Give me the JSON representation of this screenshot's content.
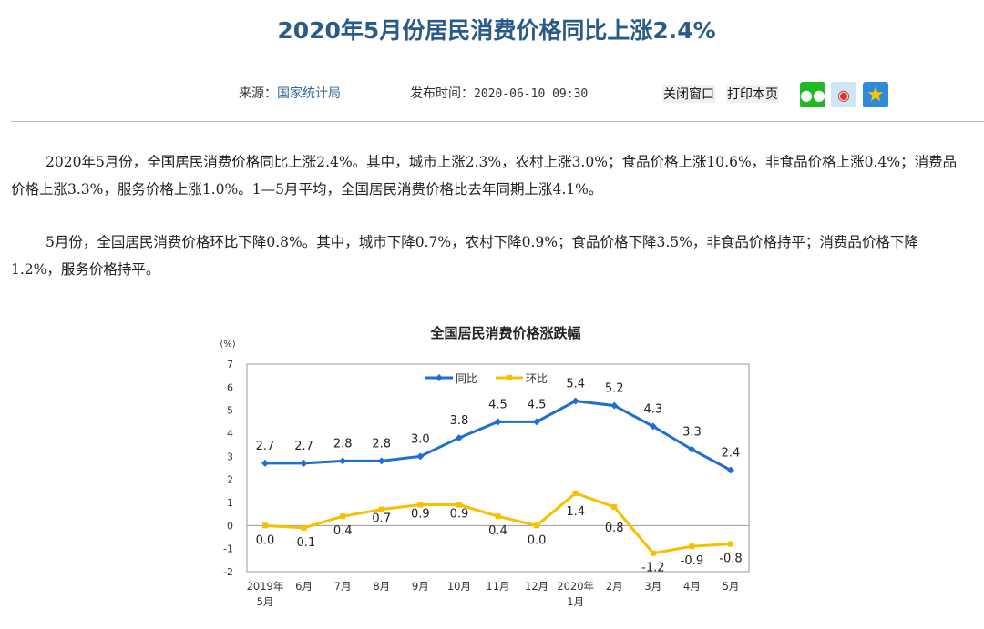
{
  "article": {
    "title": "2020年5月份居民消费价格同比上涨2.4%",
    "source_label": "来源：",
    "source": "国家统计局",
    "published_label": "发布时间：",
    "published": "2020-06-10 09:30",
    "close_window": "关闭窗口",
    "print_page": "打印本页",
    "share_icons": [
      "wechat-icon",
      "weibo-icon",
      "qzone-icon"
    ],
    "title_color": "#2a5b88",
    "paragraphs": [
      "2020年5月份，全国居民消费价格同比上涨2.4%。其中，城市上涨2.3%，农村上涨3.0%；食品价格上涨10.6%，非食品价格上涨0.4%；消费品价格上涨3.3%，服务价格上涨1.0%。1—5月平均，全国居民消费价格比去年同期上涨4.1%。",
      "5月份，全国居民消费价格环比下降0.8%。其中，城市下降0.7%，农村下降0.9%；食品价格下降3.5%，非食品价格持平；消费品价格下降1.2%，服务价格持平。"
    ]
  },
  "chart_data": {
    "type": "line",
    "title": "全国居民消费价格涨跌幅",
    "ylabel": "(%)",
    "ylim": [
      -2,
      7
    ],
    "yticks": [
      7,
      6,
      5,
      4,
      3,
      2,
      1,
      0,
      -1,
      -2
    ],
    "categories": [
      [
        "2019年",
        "5月"
      ],
      [
        "6月"
      ],
      [
        "7月"
      ],
      [
        "8月"
      ],
      [
        "9月"
      ],
      [
        "10月"
      ],
      [
        "11月"
      ],
      [
        "12月"
      ],
      [
        "2020年",
        "1月"
      ],
      [
        "2月"
      ],
      [
        "3月"
      ],
      [
        "4月"
      ],
      [
        "5月"
      ]
    ],
    "legend": "top-center",
    "series": [
      {
        "name": "同比",
        "color": "#1f6fd0",
        "marker": "diamond",
        "values": [
          2.7,
          2.7,
          2.8,
          2.8,
          3.0,
          3.8,
          4.5,
          4.5,
          5.4,
          5.2,
          4.3,
          3.3,
          2.4
        ],
        "labels": [
          "2.7",
          "2.7",
          "2.8",
          "2.8",
          "3.0",
          "3.8",
          "4.5",
          "4.5",
          "5.4",
          "5.2",
          "4.3",
          "3.3",
          "2.4"
        ]
      },
      {
        "name": "环比",
        "color": "#f5c000",
        "marker": "square",
        "values": [
          0.0,
          -0.1,
          0.4,
          0.7,
          0.9,
          0.9,
          0.4,
          0.0,
          1.4,
          0.8,
          -1.2,
          -0.9,
          -0.8
        ],
        "labels": [
          "0.0",
          "-0.1",
          "0.4",
          "0.7",
          "0.9",
          "0.9",
          "0.4",
          "0.0",
          "1.4",
          "0.8",
          "-1.2",
          "-0.9",
          "-0.8"
        ]
      }
    ]
  }
}
